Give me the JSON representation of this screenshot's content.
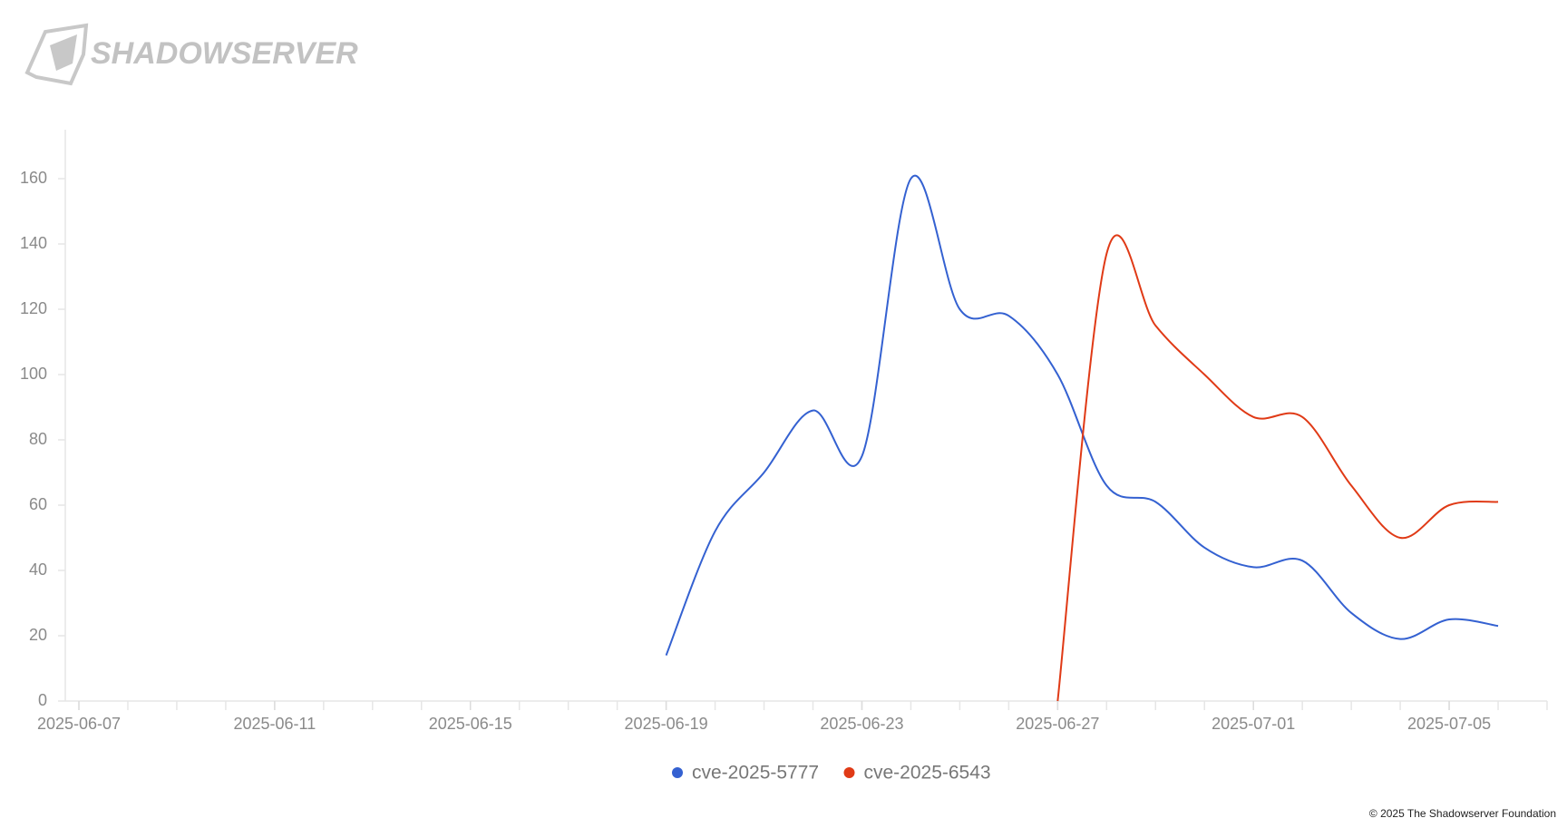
{
  "brand": "SHADOWSERVER",
  "footer": "© 2025 The Shadowserver Foundation",
  "chart_data": {
    "type": "line",
    "x": [
      "2025-06-19",
      "2025-06-20",
      "2025-06-21",
      "2025-06-22",
      "2025-06-23",
      "2025-06-24",
      "2025-06-25",
      "2025-06-26",
      "2025-06-27",
      "2025-06-28",
      "2025-06-29",
      "2025-06-30",
      "2025-07-01",
      "2025-07-02",
      "2025-07-03",
      "2025-07-04",
      "2025-07-05",
      "2025-07-06"
    ],
    "series": [
      {
        "name": "cve-2025-5777",
        "color": "#3461d1",
        "values": [
          14,
          52,
          70,
          89,
          75,
          160,
          120,
          118,
          100,
          66,
          61,
          47,
          41,
          43,
          27,
          19,
          25,
          23
        ]
      },
      {
        "name": "cve-2025-6543",
        "color": "#e03a16",
        "values": [
          null,
          null,
          null,
          null,
          null,
          null,
          null,
          null,
          0,
          137,
          115,
          100,
          87,
          87,
          66,
          50,
          60,
          61
        ]
      }
    ],
    "xlim": [
      "2025-06-07",
      "2025-07-07"
    ],
    "xticks": [
      "2025-06-07",
      "2025-06-11",
      "2025-06-15",
      "2025-06-19",
      "2025-06-23",
      "2025-06-27",
      "2025-07-01",
      "2025-07-05"
    ],
    "ylim": [
      0,
      175
    ],
    "yticks": [
      0,
      20,
      40,
      60,
      80,
      100,
      120,
      140,
      160
    ],
    "legend": "bottom"
  }
}
